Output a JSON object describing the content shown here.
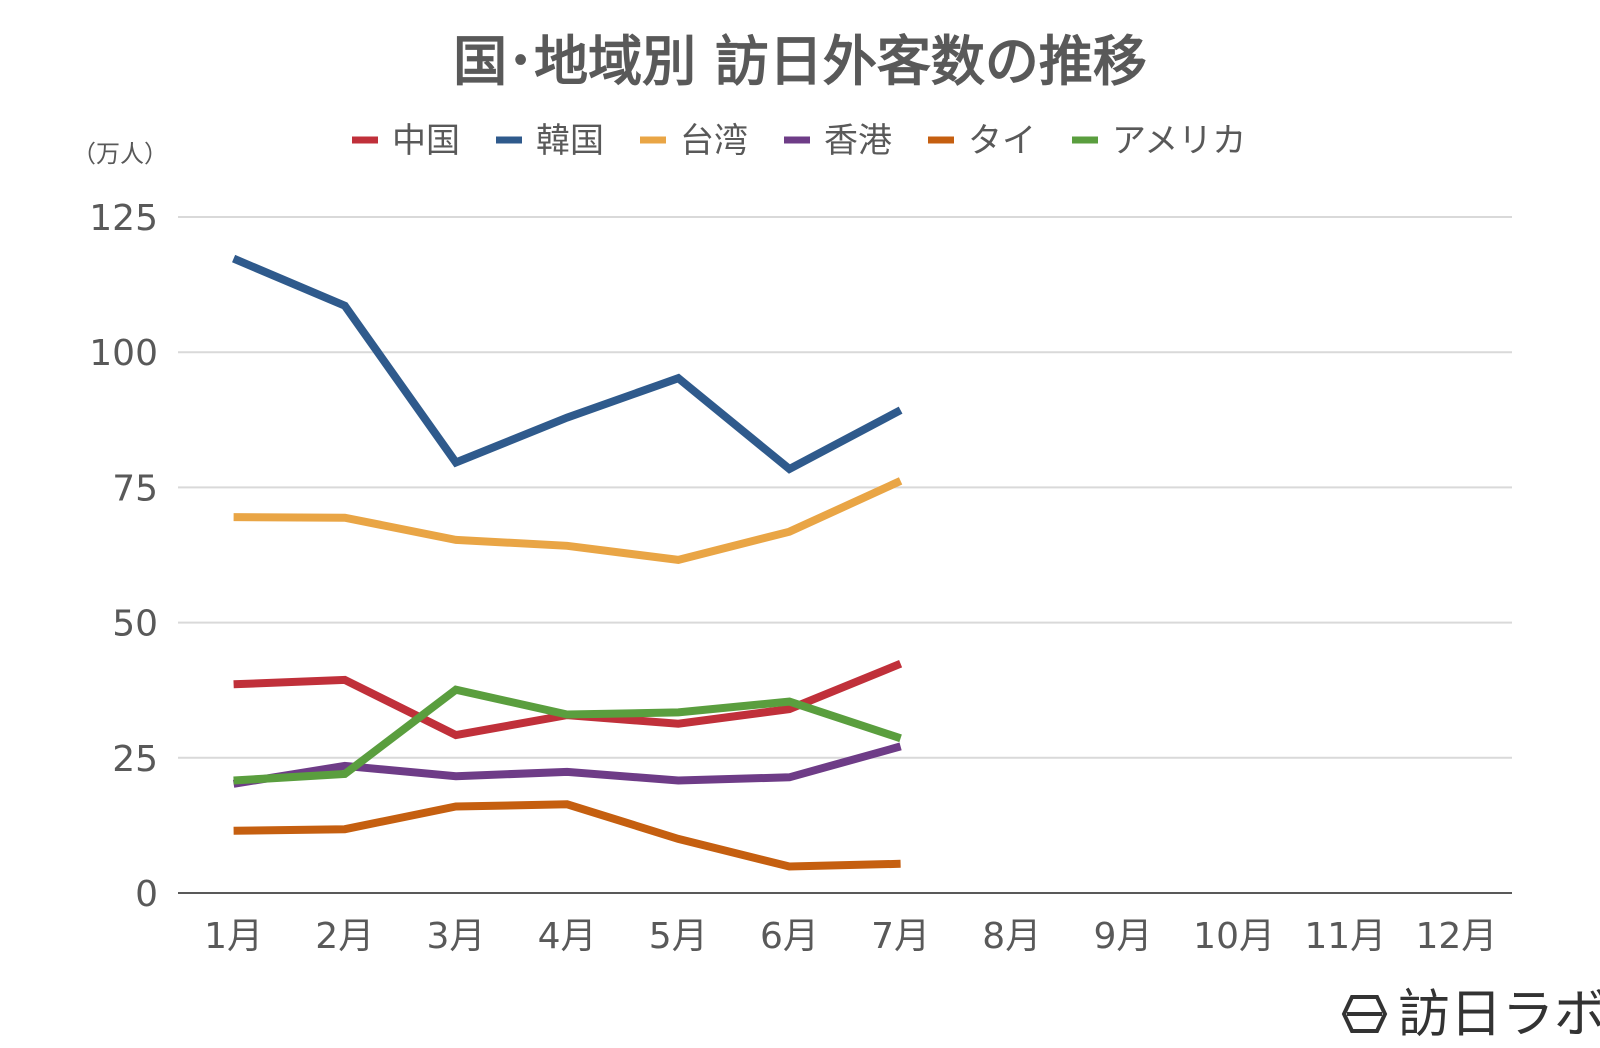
{
  "chart_data": {
    "type": "line",
    "title": "国･地域別 訪日外客数の推移",
    "ylabel": "（万人）",
    "xlabel": "",
    "categories": [
      "1月",
      "2月",
      "3月",
      "4月",
      "5月",
      "6月",
      "7月",
      "8月",
      "9月",
      "10月",
      "11月",
      "12月"
    ],
    "ylim": [
      0,
      125
    ],
    "yticks": [
      0,
      25,
      50,
      75,
      100,
      125
    ],
    "grid": true,
    "legend_position": "top",
    "series": [
      {
        "name": "中国",
        "color": "#C0303A",
        "values": [
          38.6,
          39.4,
          29.2,
          32.9,
          31.3,
          34.0,
          42.4,
          null,
          null,
          null,
          null,
          null
        ]
      },
      {
        "name": "韓国",
        "color": "#2F5A8C",
        "values": [
          117.3,
          108.6,
          79.6,
          87.9,
          95.2,
          78.4,
          89.3,
          null,
          null,
          null,
          null,
          null
        ]
      },
      {
        "name": "台湾",
        "color": "#E9A545",
        "values": [
          69.5,
          69.4,
          65.3,
          64.2,
          61.6,
          66.8,
          76.2,
          null,
          null,
          null,
          null,
          null
        ]
      },
      {
        "name": "香港",
        "color": "#6E3C87",
        "values": [
          20.2,
          23.5,
          21.6,
          22.4,
          20.8,
          21.4,
          27.1,
          null,
          null,
          null,
          null,
          null
        ]
      },
      {
        "name": "タイ",
        "color": "#C55F10",
        "values": [
          11.5,
          11.8,
          16.0,
          16.4,
          10.0,
          4.9,
          5.4,
          null,
          null,
          null,
          null,
          null
        ]
      },
      {
        "name": "アメリカ",
        "color": "#5A9E3E",
        "values": [
          20.8,
          22.0,
          37.6,
          33.0,
          33.4,
          35.4,
          28.6,
          null,
          null,
          null,
          null,
          null
        ]
      }
    ]
  },
  "brand": {
    "name": "訪日ラボ"
  }
}
